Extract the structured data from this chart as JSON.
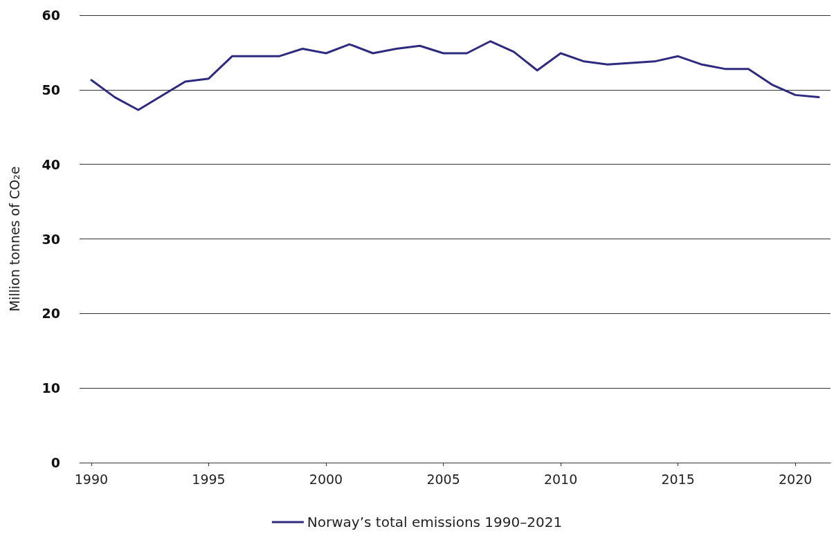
{
  "chart_data": {
    "type": "line",
    "ylabel": "Million tonnes of CO₂e",
    "x": [
      1990,
      1991,
      1992,
      1993,
      1994,
      1995,
      1996,
      1997,
      1998,
      1999,
      2000,
      2001,
      2002,
      2003,
      2004,
      2005,
      2006,
      2007,
      2008,
      2009,
      2010,
      2011,
      2012,
      2013,
      2014,
      2015,
      2016,
      2017,
      2018,
      2019,
      2020,
      2021
    ],
    "series": [
      {
        "name": "Norway’s total emissions 1990–2021",
        "color": "#2e2a7f",
        "values": [
          51.3,
          49.0,
          47.3,
          49.2,
          51.1,
          51.5,
          54.5,
          54.5,
          54.5,
          55.5,
          54.9,
          56.1,
          54.9,
          55.5,
          55.9,
          54.9,
          54.9,
          56.5,
          55.1,
          52.6,
          54.9,
          53.8,
          53.4,
          53.6,
          53.8,
          54.5,
          53.4,
          52.8,
          52.8,
          50.7,
          49.3,
          49.0
        ]
      }
    ],
    "xlim": [
      1989.5,
      2021.5
    ],
    "xticks": [
      1990,
      1995,
      2000,
      2005,
      2010,
      2015,
      2020
    ],
    "ylim": [
      0,
      60
    ],
    "yticks": [
      0,
      10,
      20,
      30,
      40,
      50,
      60
    ],
    "grid": "y",
    "legend": "bottom",
    "marker": "none",
    "line_style": "solid"
  }
}
